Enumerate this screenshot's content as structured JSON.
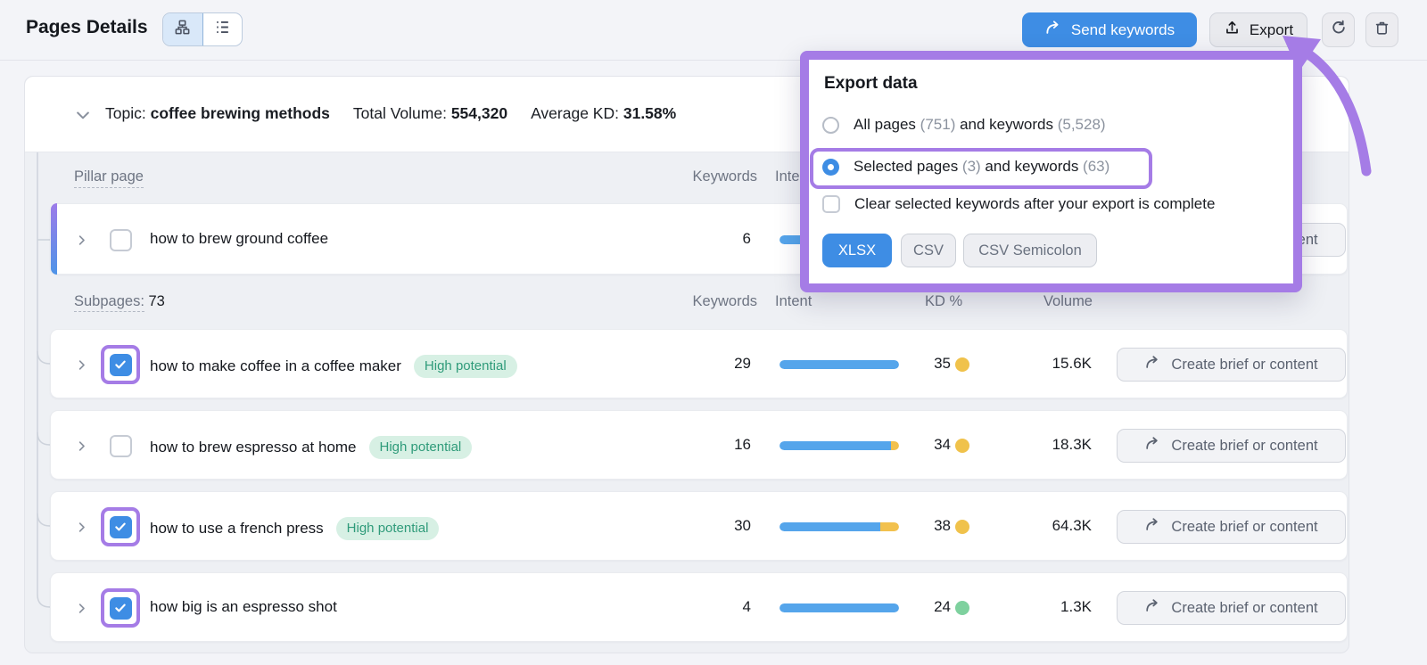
{
  "header": {
    "title": "Pages Details",
    "send_keywords_label": "Send keywords",
    "export_label": "Export"
  },
  "topic_bar": {
    "topic_label": "Topic:",
    "topic_value": "coffee brewing methods",
    "total_volume_label": "Total Volume:",
    "total_volume_value": "554,320",
    "avg_kd_label": "Average KD:",
    "avg_kd_value": "31.58%"
  },
  "columns": {
    "pillar": "Pillar page",
    "keywords": "Keywords",
    "intent": "Intent",
    "kd": "KD %",
    "volume": "Volume"
  },
  "subpages": {
    "label": "Subpages:",
    "count": "73"
  },
  "pillar_row": {
    "label": "how to brew ground coffee",
    "keywords": "6",
    "kd": "",
    "volume": "",
    "action_label": "Create brief or content",
    "checked": false,
    "intent_blue_pct": 100,
    "intent_yellow_pct": 0
  },
  "rows": [
    {
      "label": "how to make coffee in a coffee maker",
      "badge": "High potential",
      "keywords": "29",
      "intent_blue_pct": 100,
      "intent_yellow_pct": 0,
      "kd": "35",
      "kd_color": "kd_yellow",
      "volume": "15.6K",
      "action_label": "Create brief or content",
      "checked": true
    },
    {
      "label": "how to brew espresso at home",
      "badge": "High potential",
      "keywords": "16",
      "intent_blue_pct": 93,
      "intent_yellow_pct": 7,
      "kd": "34",
      "kd_color": "kd_yellow",
      "volume": "18.3K",
      "action_label": "Create brief or content",
      "checked": false
    },
    {
      "label": "how to use a french press",
      "badge": "High potential",
      "keywords": "30",
      "intent_blue_pct": 84,
      "intent_yellow_pct": 16,
      "kd": "38",
      "kd_color": "kd_yellow",
      "volume": "64.3K",
      "action_label": "Create brief or content",
      "checked": true
    },
    {
      "label": "how big is an espresso shot",
      "badge": "",
      "keywords": "4",
      "intent_blue_pct": 100,
      "intent_yellow_pct": 0,
      "kd": "24",
      "kd_color": "kd_green",
      "volume": "1.3K",
      "action_label": "Create brief or content",
      "checked": true
    }
  ],
  "export_popup": {
    "title": "Export data",
    "option_all": {
      "pre": "All pages ",
      "count1": "(751)",
      "mid": " and keywords ",
      "count2": "(5,528)"
    },
    "option_selected": {
      "pre": "Selected pages ",
      "count1": "(3)",
      "mid": " and keywords ",
      "count2": "(63)"
    },
    "checkbox_label": "Clear selected keywords after your export is complete",
    "formats": [
      "XLSX",
      "CSV",
      "CSV Semicolon"
    ]
  },
  "colors": {
    "accent_purple": "#a57ce6",
    "primary_blue": "#3e8de4",
    "bar_blue": "#55a5eb",
    "bar_yellow": "#f2c14e",
    "kd_yellow": "#f0c24b",
    "kd_green": "#7ed19e",
    "badge_bg": "#d7f0e4",
    "badge_text": "#2f9b7a"
  }
}
